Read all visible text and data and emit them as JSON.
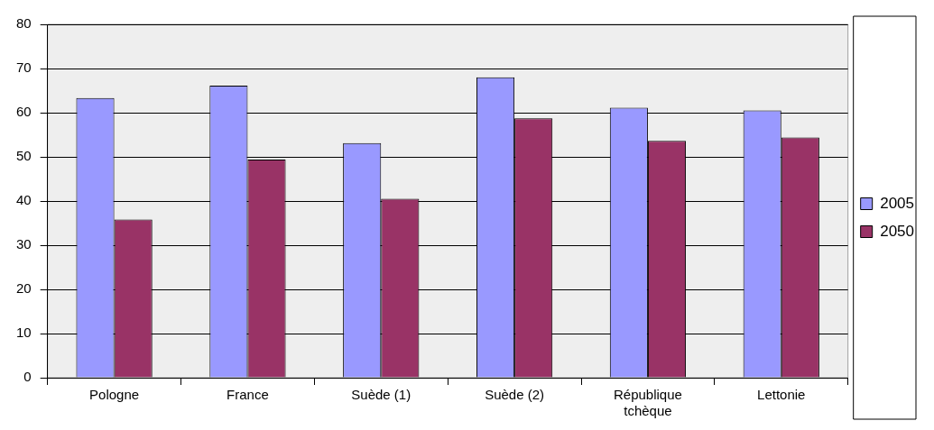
{
  "chart_data": {
    "type": "bar",
    "categories": [
      "Pologne",
      "France",
      "Suède (1)",
      "Suède (2)",
      "République tchèque",
      "Lettonie"
    ],
    "series": [
      {
        "name": "2005",
        "color": "#9999ff",
        "values": [
          63.3,
          66.1,
          53.1,
          68.0,
          61.1,
          60.5
        ]
      },
      {
        "name": "2050",
        "color": "#993366",
        "values": [
          35.8,
          49.4,
          40.5,
          58.7,
          53.6,
          54.4
        ]
      }
    ],
    "ylim": [
      0,
      80
    ],
    "yticks": [
      0,
      10,
      20,
      30,
      40,
      50,
      60,
      70,
      80
    ],
    "grid": "y",
    "legend": "right"
  }
}
